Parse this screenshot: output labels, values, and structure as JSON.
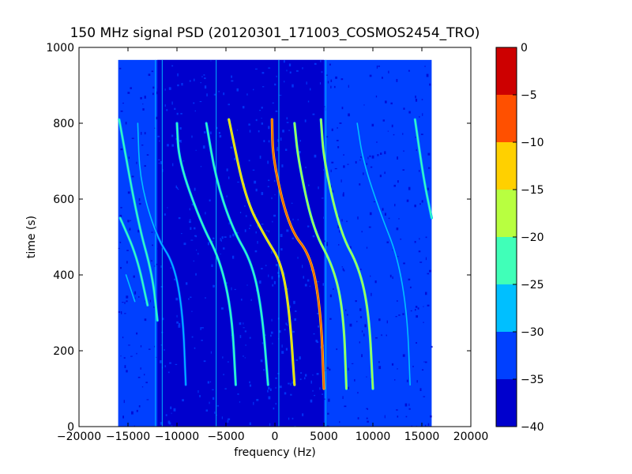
{
  "chart_data": {
    "type": "heatmap",
    "title": "150 MHz signal PSD (20120301_171003_COSMOS2454_TRO)",
    "xlabel": "frequency (Hz)",
    "ylabel": "time (s)",
    "xlim": [
      -20000,
      20000
    ],
    "ylim": [
      0,
      1000
    ],
    "xticks": [
      -20000,
      -15000,
      -10000,
      -5000,
      0,
      5000,
      10000,
      15000,
      20000
    ],
    "yticks": [
      0,
      200,
      400,
      600,
      800,
      1000
    ],
    "data_extent": {
      "x": [
        -16000,
        16000
      ],
      "y": [
        0,
        967
      ]
    },
    "background_level": -30,
    "colorbar": {
      "label": "",
      "ticks": [
        0,
        -5,
        -10,
        -15,
        -20,
        -25,
        -30,
        -35,
        -40
      ],
      "levels": [
        {
          "range": [
            -40,
            -35
          ],
          "color": "#0000cd"
        },
        {
          "range": [
            -35,
            -30
          ],
          "color": "#0040ff"
        },
        {
          "range": [
            -30,
            -25
          ],
          "color": "#00bfff"
        },
        {
          "range": [
            -25,
            -20
          ],
          "color": "#40ffb8"
        },
        {
          "range": [
            -20,
            -15
          ],
          "color": "#b8ff40"
        },
        {
          "range": [
            -15,
            -10
          ],
          "color": "#ffd000"
        },
        {
          "range": [
            -10,
            -5
          ],
          "color": "#ff5000"
        },
        {
          "range": [
            -5,
            0
          ],
          "color": "#cd0000"
        }
      ]
    },
    "noise_region": {
      "x": [
        -12000,
        5000
      ],
      "level": -35
    },
    "vertical_lines": [
      {
        "x": -12200,
        "level": -25
      },
      {
        "x": -11500,
        "level": -25
      },
      {
        "x": -6000,
        "level": -25
      },
      {
        "x": 400,
        "level": -25
      },
      {
        "x": 5200,
        "level": -25
      }
    ],
    "series": [
      {
        "points": [
          [
            2000,
            110
          ],
          [
            1500,
            300
          ],
          [
            700,
            430
          ],
          [
            -1000,
            500
          ],
          [
            -3000,
            600
          ],
          [
            -4700,
            810
          ]
        ],
        "level": -10
      },
      {
        "points": [
          [
            -700,
            110
          ],
          [
            -1300,
            300
          ],
          [
            -2300,
            430
          ],
          [
            -4300,
            520
          ],
          [
            -6000,
            650
          ],
          [
            -7000,
            800
          ]
        ],
        "level": -20
      },
      {
        "points": [
          [
            5000,
            100
          ],
          [
            4700,
            300
          ],
          [
            3700,
            450
          ],
          [
            1500,
            520
          ],
          [
            -200,
            700
          ],
          [
            -300,
            810
          ]
        ],
        "level": -5
      },
      {
        "points": [
          [
            7300,
            100
          ],
          [
            7000,
            300
          ],
          [
            6000,
            420
          ],
          [
            3900,
            520
          ],
          [
            2400,
            700
          ],
          [
            2000,
            800
          ]
        ],
        "level": -15
      },
      {
        "points": [
          [
            10000,
            100
          ],
          [
            9600,
            300
          ],
          [
            8600,
            420
          ],
          [
            6700,
            510
          ],
          [
            5000,
            700
          ],
          [
            4700,
            810
          ]
        ],
        "level": -15
      },
      {
        "points": [
          [
            -9100,
            110
          ],
          [
            -9400,
            300
          ],
          [
            -10300,
            430
          ],
          [
            -12100,
            500
          ],
          [
            -13800,
            650
          ],
          [
            -14000,
            800
          ]
        ],
        "level": -25
      },
      {
        "points": [
          [
            -4000,
            110
          ],
          [
            -4400,
            300
          ],
          [
            -5600,
            440
          ],
          [
            -7600,
            540
          ],
          [
            -9800,
            700
          ],
          [
            -10000,
            800
          ]
        ],
        "level": -20
      },
      {
        "points": [
          [
            -13000,
            320
          ],
          [
            -14100,
            450
          ],
          [
            -15800,
            550
          ]
        ],
        "level": -20
      },
      {
        "points": [
          [
            -12000,
            280
          ],
          [
            -12500,
            400
          ],
          [
            -14000,
            540
          ],
          [
            -15900,
            810
          ]
        ],
        "level": -20
      },
      {
        "points": [
          [
            13800,
            110
          ],
          [
            13500,
            300
          ],
          [
            12500,
            450
          ],
          [
            10800,
            560
          ],
          [
            9000,
            700
          ],
          [
            8400,
            800
          ]
        ],
        "level": -25
      },
      {
        "points": [
          [
            16000,
            550
          ],
          [
            15200,
            650
          ],
          [
            14300,
            810
          ]
        ],
        "level": -20
      },
      {
        "points": [
          [
            -14300,
            330
          ],
          [
            -15200,
            400
          ]
        ],
        "level": -25
      }
    ]
  }
}
